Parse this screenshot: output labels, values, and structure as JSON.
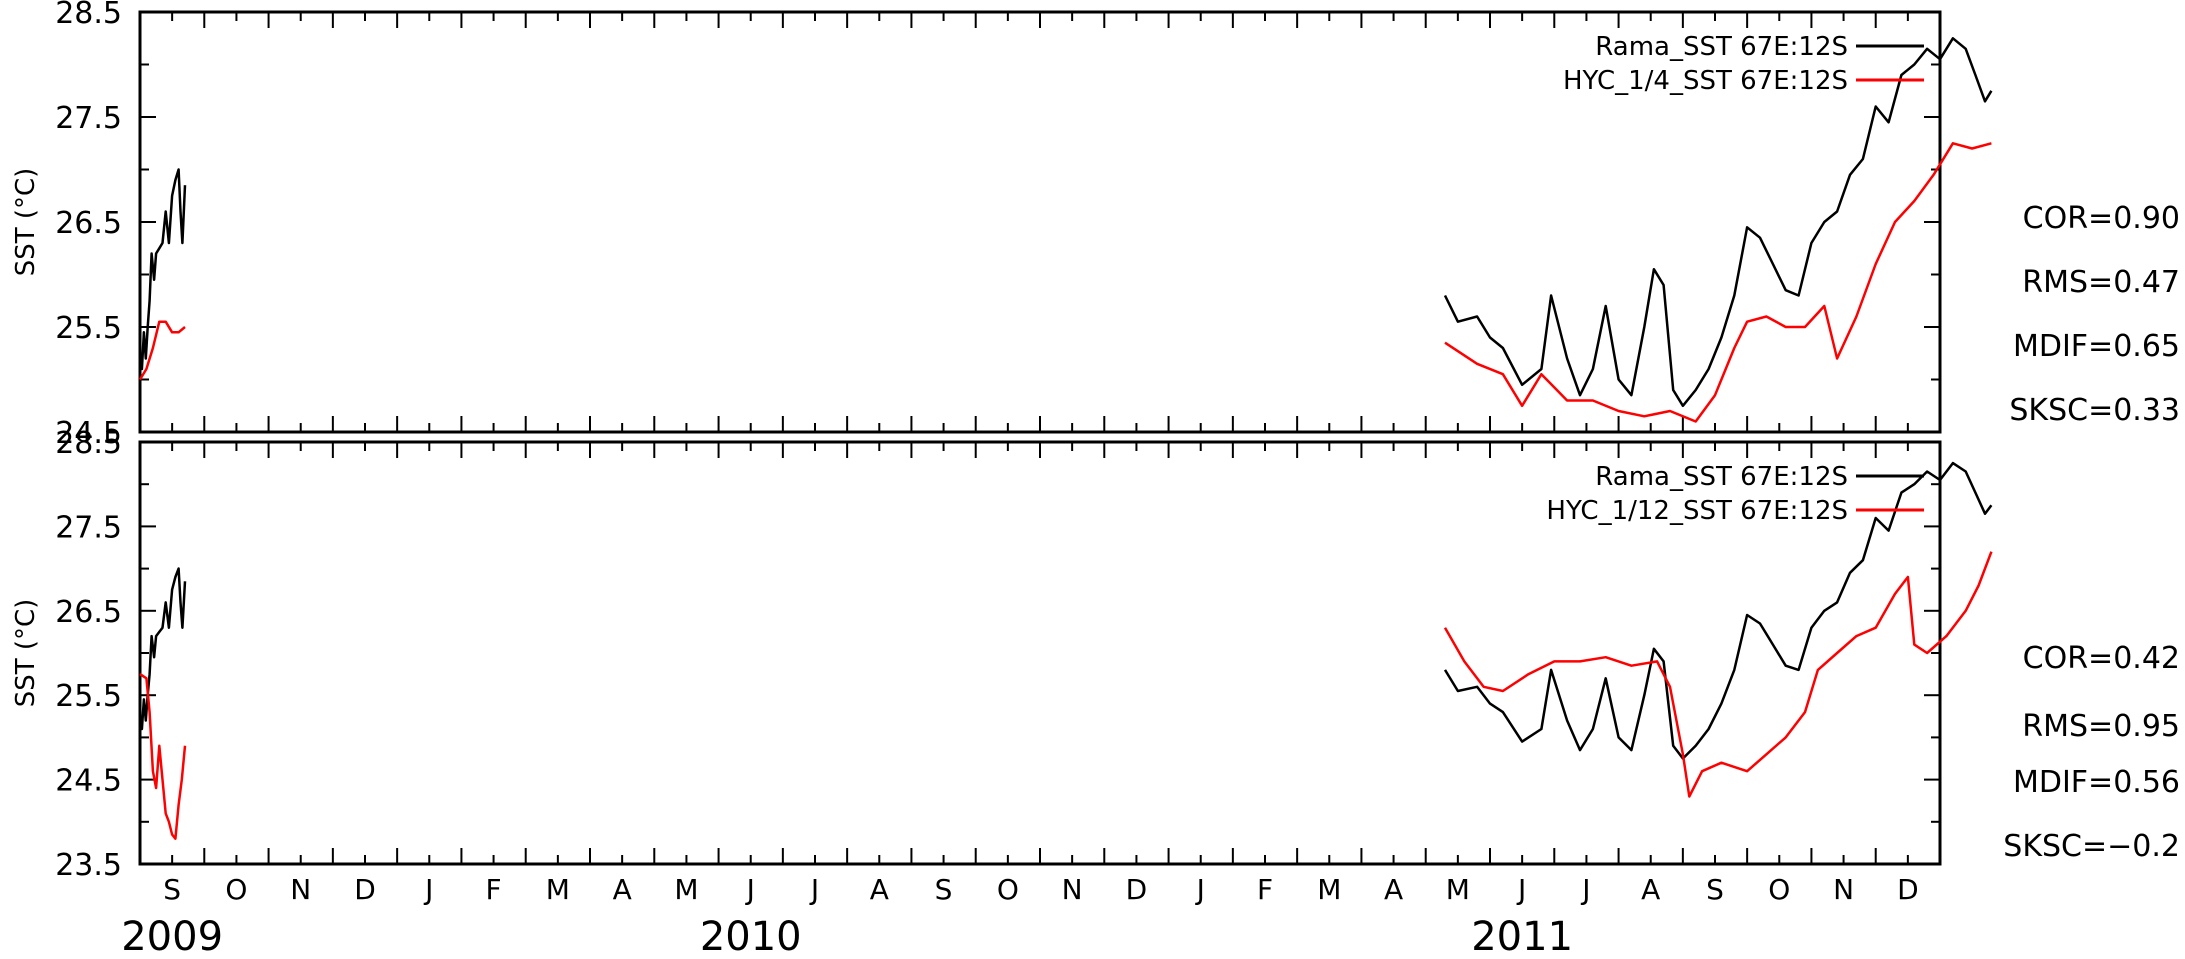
{
  "chart_data": [
    {
      "type": "line",
      "ylabel": "SST (°C)",
      "ylim": [
        24.5,
        28.5
      ],
      "yticks": [
        "24.5",
        "25.5",
        "26.5",
        "27.5",
        "28.5"
      ],
      "series": [
        {
          "name": "Rama_SST 67E:12S",
          "color": "#000000",
          "segments": [
            [
              [
                0.0,
                25.25
              ],
              [
                0.03,
                25.1
              ],
              [
                0.06,
                25.45
              ],
              [
                0.09,
                25.2
              ],
              [
                0.12,
                25.5
              ],
              [
                0.15,
                25.75
              ],
              [
                0.18,
                26.2
              ],
              [
                0.22,
                25.95
              ],
              [
                0.25,
                26.2
              ],
              [
                0.3,
                26.25
              ],
              [
                0.35,
                26.3
              ],
              [
                0.4,
                26.6
              ],
              [
                0.45,
                26.3
              ],
              [
                0.5,
                26.75
              ],
              [
                0.55,
                26.9
              ],
              [
                0.6,
                27.0
              ],
              [
                0.63,
                26.6
              ],
              [
                0.66,
                26.3
              ],
              [
                0.7,
                26.85
              ]
            ],
            [
              [
                20.3,
                25.8
              ],
              [
                20.5,
                25.55
              ],
              [
                20.8,
                25.6
              ],
              [
                21.0,
                25.4
              ],
              [
                21.2,
                25.3
              ],
              [
                21.5,
                24.95
              ],
              [
                21.8,
                25.1
              ],
              [
                21.95,
                25.8
              ],
              [
                22.2,
                25.2
              ],
              [
                22.4,
                24.85
              ],
              [
                22.6,
                25.1
              ],
              [
                22.8,
                25.7
              ],
              [
                23.0,
                25.0
              ],
              [
                23.2,
                24.85
              ],
              [
                23.4,
                25.5
              ],
              [
                23.55,
                26.05
              ],
              [
                23.7,
                25.9
              ],
              [
                23.85,
                24.9
              ],
              [
                24.0,
                24.75
              ],
              [
                24.2,
                24.9
              ],
              [
                24.4,
                25.1
              ],
              [
                24.6,
                25.4
              ],
              [
                24.8,
                25.8
              ],
              [
                25.0,
                26.45
              ],
              [
                25.2,
                26.35
              ],
              [
                25.4,
                26.1
              ],
              [
                25.6,
                25.85
              ],
              [
                25.8,
                25.8
              ],
              [
                26.0,
                26.3
              ],
              [
                26.2,
                26.5
              ],
              [
                26.4,
                26.6
              ],
              [
                26.6,
                26.95
              ],
              [
                26.8,
                27.1
              ],
              [
                27.0,
                27.6
              ],
              [
                27.2,
                27.45
              ],
              [
                27.4,
                27.9
              ],
              [
                27.6,
                28.0
              ],
              [
                27.8,
                28.15
              ],
              [
                28.0,
                28.05
              ],
              [
                28.2,
                28.25
              ],
              [
                28.4,
                28.15
              ],
              [
                28.55,
                27.9
              ],
              [
                28.7,
                27.65
              ],
              [
                28.8,
                27.75
              ]
            ]
          ]
        },
        {
          "name": "HYC_1/4_SST 67E:12S",
          "color": "#ff0000",
          "segments": [
            [
              [
                0.0,
                25.0
              ],
              [
                0.1,
                25.1
              ],
              [
                0.2,
                25.3
              ],
              [
                0.3,
                25.55
              ],
              [
                0.4,
                25.55
              ],
              [
                0.5,
                25.45
              ],
              [
                0.6,
                25.45
              ],
              [
                0.7,
                25.5
              ]
            ],
            [
              [
                20.3,
                25.35
              ],
              [
                20.8,
                25.15
              ],
              [
                21.2,
                25.05
              ],
              [
                21.5,
                24.75
              ],
              [
                21.8,
                25.05
              ],
              [
                22.2,
                24.8
              ],
              [
                22.6,
                24.8
              ],
              [
                23.0,
                24.7
              ],
              [
                23.4,
                24.65
              ],
              [
                23.8,
                24.7
              ],
              [
                24.2,
                24.6
              ],
              [
                24.5,
                24.85
              ],
              [
                24.8,
                25.3
              ],
              [
                25.0,
                25.55
              ],
              [
                25.3,
                25.6
              ],
              [
                25.6,
                25.5
              ],
              [
                25.9,
                25.5
              ],
              [
                26.2,
                25.7
              ],
              [
                26.4,
                25.2
              ],
              [
                26.7,
                25.6
              ],
              [
                27.0,
                26.1
              ],
              [
                27.3,
                26.5
              ],
              [
                27.6,
                26.7
              ],
              [
                27.9,
                26.95
              ],
              [
                28.2,
                27.25
              ],
              [
                28.5,
                27.2
              ],
              [
                28.8,
                27.25
              ]
            ]
          ]
        }
      ]
    },
    {
      "type": "line",
      "ylabel": "SST (°C)",
      "ylim": [
        23.5,
        28.5
      ],
      "yticks": [
        "23.5",
        "24.5",
        "25.5",
        "26.5",
        "27.5",
        "28.5"
      ],
      "series": [
        {
          "name": "Rama_SST 67E:12S",
          "color": "#000000",
          "segments": [
            [
              [
                0.0,
                25.25
              ],
              [
                0.03,
                25.1
              ],
              [
                0.06,
                25.45
              ],
              [
                0.09,
                25.2
              ],
              [
                0.12,
                25.5
              ],
              [
                0.15,
                25.75
              ],
              [
                0.18,
                26.2
              ],
              [
                0.22,
                25.95
              ],
              [
                0.25,
                26.2
              ],
              [
                0.3,
                26.25
              ],
              [
                0.35,
                26.3
              ],
              [
                0.4,
                26.6
              ],
              [
                0.45,
                26.3
              ],
              [
                0.5,
                26.75
              ],
              [
                0.55,
                26.9
              ],
              [
                0.6,
                27.0
              ],
              [
                0.63,
                26.6
              ],
              [
                0.66,
                26.3
              ],
              [
                0.7,
                26.85
              ]
            ],
            [
              [
                20.3,
                25.8
              ],
              [
                20.5,
                25.55
              ],
              [
                20.8,
                25.6
              ],
              [
                21.0,
                25.4
              ],
              [
                21.2,
                25.3
              ],
              [
                21.5,
                24.95
              ],
              [
                21.8,
                25.1
              ],
              [
                21.95,
                25.8
              ],
              [
                22.2,
                25.2
              ],
              [
                22.4,
                24.85
              ],
              [
                22.6,
                25.1
              ],
              [
                22.8,
                25.7
              ],
              [
                23.0,
                25.0
              ],
              [
                23.2,
                24.85
              ],
              [
                23.4,
                25.5
              ],
              [
                23.55,
                26.05
              ],
              [
                23.7,
                25.9
              ],
              [
                23.85,
                24.9
              ],
              [
                24.0,
                24.75
              ],
              [
                24.2,
                24.9
              ],
              [
                24.4,
                25.1
              ],
              [
                24.6,
                25.4
              ],
              [
                24.8,
                25.8
              ],
              [
                25.0,
                26.45
              ],
              [
                25.2,
                26.35
              ],
              [
                25.4,
                26.1
              ],
              [
                25.6,
                25.85
              ],
              [
                25.8,
                25.8
              ],
              [
                26.0,
                26.3
              ],
              [
                26.2,
                26.5
              ],
              [
                26.4,
                26.6
              ],
              [
                26.6,
                26.95
              ],
              [
                26.8,
                27.1
              ],
              [
                27.0,
                27.6
              ],
              [
                27.2,
                27.45
              ],
              [
                27.4,
                27.9
              ],
              [
                27.6,
                28.0
              ],
              [
                27.8,
                28.15
              ],
              [
                28.0,
                28.05
              ],
              [
                28.2,
                28.25
              ],
              [
                28.4,
                28.15
              ],
              [
                28.55,
                27.9
              ],
              [
                28.7,
                27.65
              ],
              [
                28.8,
                27.75
              ]
            ]
          ]
        },
        {
          "name": "HYC_1/12_SST 67E:12S",
          "color": "#ff0000",
          "segments": [
            [
              [
                0.0,
                25.75
              ],
              [
                0.1,
                25.7
              ],
              [
                0.15,
                25.3
              ],
              [
                0.2,
                24.6
              ],
              [
                0.25,
                24.4
              ],
              [
                0.3,
                24.9
              ],
              [
                0.35,
                24.5
              ],
              [
                0.4,
                24.1
              ],
              [
                0.45,
                24.0
              ],
              [
                0.5,
                23.85
              ],
              [
                0.55,
                23.8
              ],
              [
                0.6,
                24.2
              ],
              [
                0.65,
                24.5
              ],
              [
                0.7,
                24.9
              ]
            ],
            [
              [
                20.3,
                26.3
              ],
              [
                20.6,
                25.9
              ],
              [
                20.9,
                25.6
              ],
              [
                21.2,
                25.55
              ],
              [
                21.6,
                25.75
              ],
              [
                22.0,
                25.9
              ],
              [
                22.4,
                25.9
              ],
              [
                22.8,
                25.95
              ],
              [
                23.2,
                25.85
              ],
              [
                23.6,
                25.9
              ],
              [
                23.8,
                25.6
              ],
              [
                24.0,
                24.8
              ],
              [
                24.1,
                24.3
              ],
              [
                24.3,
                24.6
              ],
              [
                24.6,
                24.7
              ],
              [
                25.0,
                24.6
              ],
              [
                25.3,
                24.8
              ],
              [
                25.6,
                25.0
              ],
              [
                25.9,
                25.3
              ],
              [
                26.1,
                25.8
              ],
              [
                26.4,
                26.0
              ],
              [
                26.7,
                26.2
              ],
              [
                27.0,
                26.3
              ],
              [
                27.3,
                26.7
              ],
              [
                27.5,
                26.9
              ],
              [
                27.6,
                26.1
              ],
              [
                27.8,
                26.0
              ],
              [
                28.1,
                26.2
              ],
              [
                28.4,
                26.5
              ],
              [
                28.6,
                26.8
              ],
              [
                28.8,
                27.2
              ]
            ]
          ]
        }
      ]
    }
  ],
  "x_axis": {
    "months": [
      "S",
      "O",
      "N",
      "D",
      "J",
      "F",
      "M",
      "A",
      "M",
      "J",
      "J",
      "A",
      "S",
      "O",
      "N",
      "D",
      "J",
      "F",
      "M",
      "A",
      "M",
      "J",
      "J",
      "A",
      "S",
      "O",
      "N",
      "D"
    ],
    "years": [
      {
        "label": "2009",
        "month_index": 0.5
      },
      {
        "label": "2010",
        "month_index": 9.5
      },
      {
        "label": "2011",
        "month_index": 21.5
      }
    ]
  },
  "stats": [
    {
      "cor": "COR=0.90",
      "rms": "RMS=0.47",
      "mdif": "MDIF=0.65",
      "sksc": "SKSC=0.33"
    },
    {
      "cor": "COR=0.42",
      "rms": "RMS=0.95",
      "mdif": "MDIF=0.56",
      "sksc": "SKSC=−0.2"
    }
  ]
}
